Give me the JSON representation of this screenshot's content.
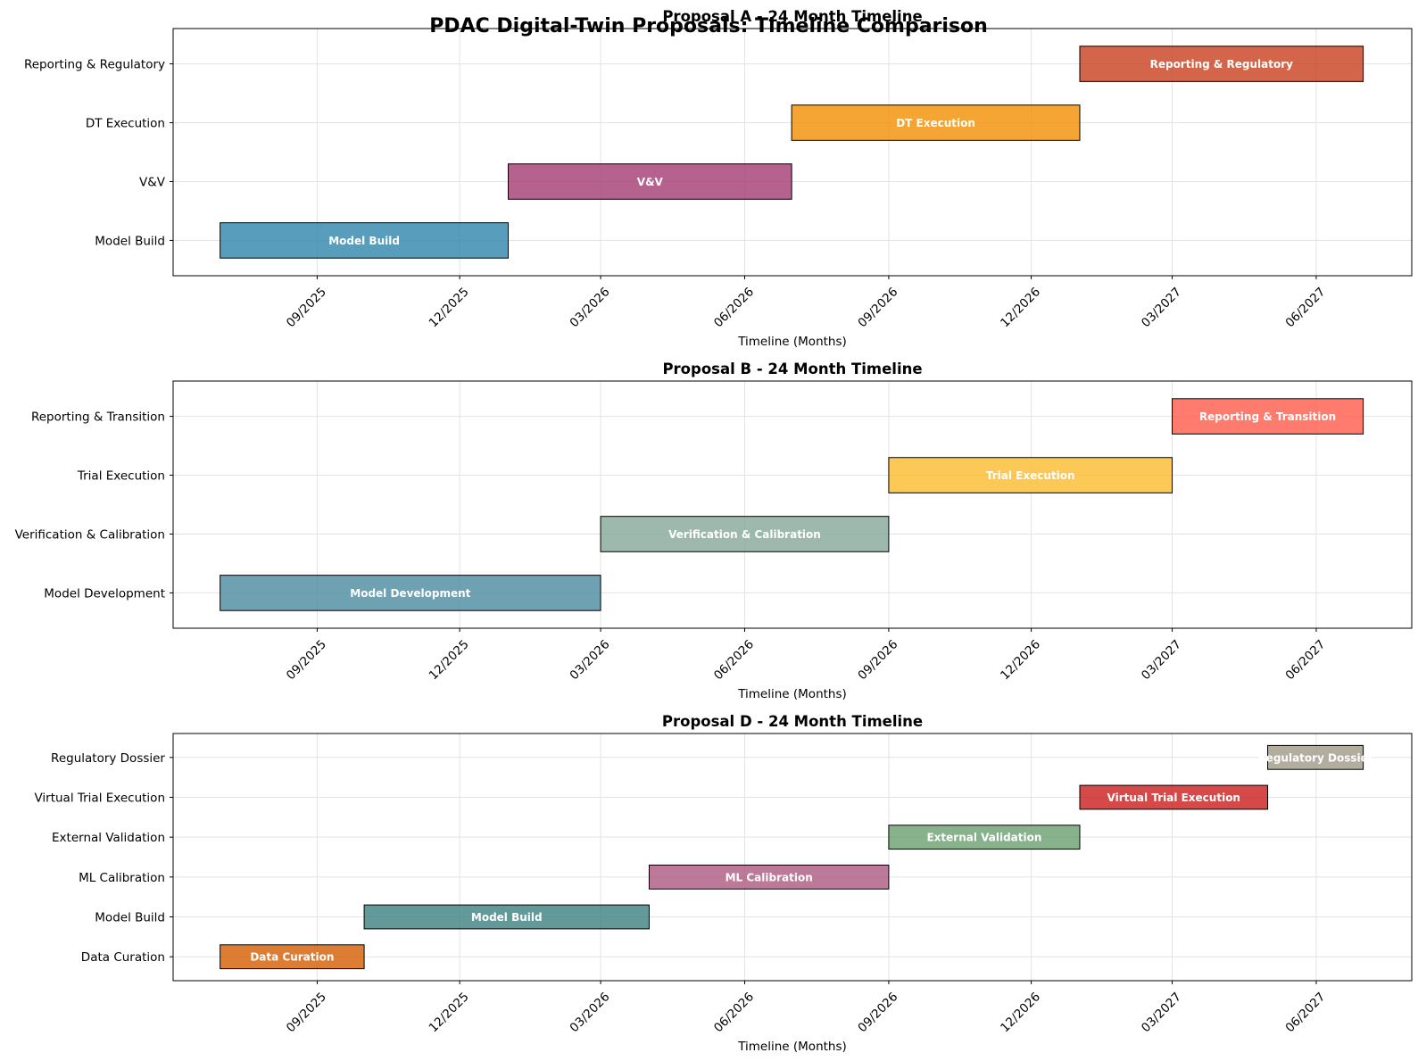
{
  "figure": {
    "suptitle": "PDAC Digital-Twin Proposals: Timeline Comparison"
  },
  "chart_data": [
    {
      "type": "gantt",
      "title": "Proposal A - 24 Month Timeline",
      "xlabel": "Timeline (Months)",
      "ylabel": "",
      "xlim": [
        "2025-06-01",
        "2027-08-01"
      ],
      "x_ticks": [
        "09/2025",
        "12/2025",
        "03/2026",
        "06/2026",
        "09/2026",
        "12/2026",
        "03/2027",
        "06/2027"
      ],
      "grid": true,
      "tasks": [
        {
          "name": "Model Build",
          "start": "2025-07-01",
          "end": "2026-01-01",
          "color": "#2E86AB"
        },
        {
          "name": "V&V",
          "start": "2026-01-01",
          "end": "2026-07-01",
          "color": "#A23B72"
        },
        {
          "name": "DT Execution",
          "start": "2026-07-01",
          "end": "2027-01-01",
          "color": "#F18F01"
        },
        {
          "name": "Reporting & Regulatory",
          "start": "2027-01-01",
          "end": "2027-07-01",
          "color": "#C73E1D"
        }
      ]
    },
    {
      "type": "gantt",
      "title": "Proposal B - 24 Month Timeline",
      "xlabel": "Timeline (Months)",
      "ylabel": "",
      "xlim": [
        "2025-06-01",
        "2027-08-01"
      ],
      "x_ticks": [
        "09/2025",
        "12/2025",
        "03/2026",
        "06/2026",
        "09/2026",
        "12/2026",
        "03/2027",
        "06/2027"
      ],
      "grid": true,
      "tasks": [
        {
          "name": "Model Development",
          "start": "2025-07-01",
          "end": "2026-03-01",
          "color": "#4A8BA0"
        },
        {
          "name": "Verification & Calibration",
          "start": "2026-03-01",
          "end": "2026-09-01",
          "color": "#84A898"
        },
        {
          "name": "Trial Execution",
          "start": "2026-09-01",
          "end": "2027-03-01",
          "color": "#FCBC2C"
        },
        {
          "name": "Reporting & Transition",
          "start": "2027-03-01",
          "end": "2027-07-01",
          "color": "#FF5A48"
        }
      ]
    },
    {
      "type": "gantt",
      "title": "Proposal D - 24 Month Timeline",
      "xlabel": "Timeline (Months)",
      "ylabel": "",
      "xlim": [
        "2025-06-01",
        "2027-08-01"
      ],
      "x_ticks": [
        "09/2025",
        "12/2025",
        "03/2026",
        "06/2026",
        "09/2026",
        "12/2026",
        "03/2027",
        "06/2027"
      ],
      "grid": true,
      "tasks": [
        {
          "name": "Data Curation",
          "start": "2025-07-01",
          "end": "2025-10-01",
          "color": "#D45D00"
        },
        {
          "name": "Model Build",
          "start": "2025-10-01",
          "end": "2026-04-01",
          "color": "#3D7F7F"
        },
        {
          "name": "ML Calibration",
          "start": "2026-04-01",
          "end": "2026-09-01",
          "color": "#AD5881"
        },
        {
          "name": "External Validation",
          "start": "2026-09-01",
          "end": "2027-01-01",
          "color": "#6A9F6F"
        },
        {
          "name": "Virtual Trial Execution",
          "start": "2027-01-01",
          "end": "2027-05-01",
          "color": "#CC1B1B"
        },
        {
          "name": "Regulatory Dossier",
          "start": "2027-05-01",
          "end": "2027-07-01",
          "color": "#A09888"
        }
      ]
    }
  ]
}
